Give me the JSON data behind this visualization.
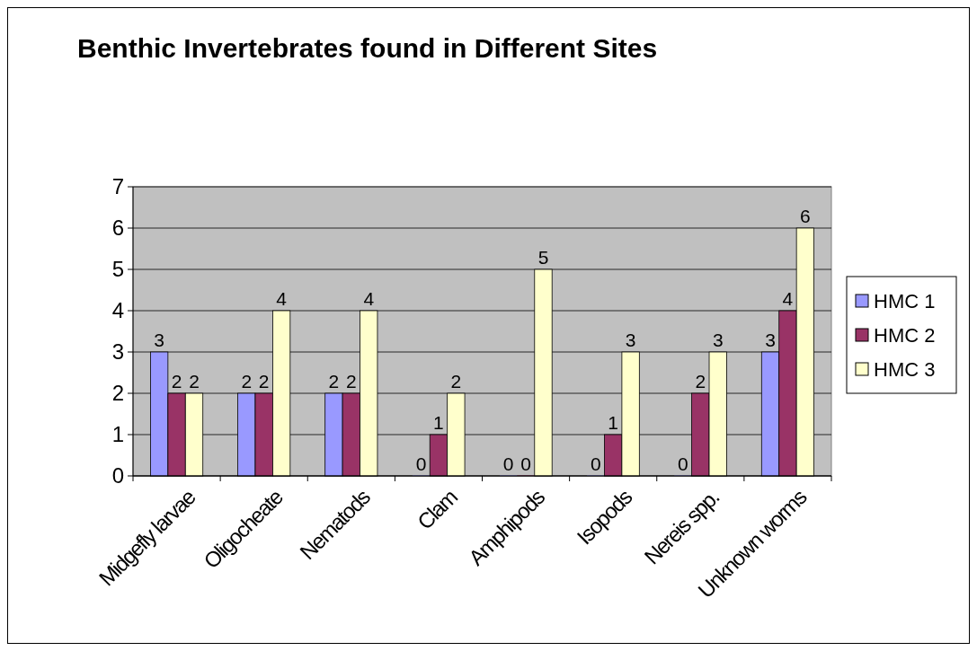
{
  "chart_data": {
    "type": "bar",
    "title": "Benthic Invertebrates found in Different Sites",
    "categories": [
      "Midgefly larvae",
      "Oligocheate",
      "Nematods",
      "Clam",
      "Amphipods",
      "Isopods",
      "Nereis spp.",
      "Unknown worms"
    ],
    "series": [
      {
        "name": "HMC 1",
        "color": "#9999ff",
        "values": [
          3,
          2,
          2,
          0,
          0,
          0,
          0,
          3
        ]
      },
      {
        "name": "HMC 2",
        "color": "#993366",
        "values": [
          2,
          2,
          2,
          1,
          0,
          1,
          2,
          4
        ]
      },
      {
        "name": "HMC 3",
        "color": "#ffffcc",
        "values": [
          2,
          4,
          4,
          2,
          5,
          3,
          3,
          6
        ]
      }
    ],
    "ylim": [
      0,
      7
    ],
    "yticks": [
      0,
      1,
      2,
      3,
      4,
      5,
      6,
      7
    ],
    "grid": "y",
    "legend": "right",
    "data_labels": true
  }
}
